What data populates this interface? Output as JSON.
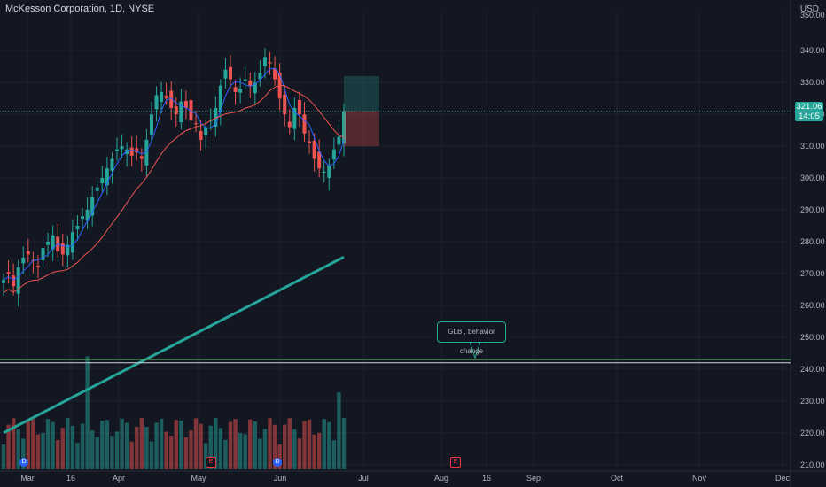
{
  "header": {
    "title": "McKesson Corporation, 1D, NYSE",
    "currency": "USD"
  },
  "last_price": {
    "value": "321.06",
    "countdown": "14:05"
  },
  "annotation": {
    "text": "GLB , behavior change"
  },
  "event_badges": [
    {
      "label": "D",
      "kind": "dividend",
      "month": "Mar"
    },
    {
      "label": "E",
      "kind": "earnings",
      "month": "May"
    },
    {
      "label": "D",
      "kind": "dividend",
      "month": "Jun"
    },
    {
      "label": "E",
      "kind": "earnings",
      "month": "Aug"
    }
  ],
  "colors": {
    "up": "#26a69a",
    "down": "#ef5350",
    "ma_fast": "#2962ff",
    "ma_mid": "#ef5350",
    "ma_slow": "#26a69a",
    "background": "#131722"
  },
  "chart_data": {
    "type": "candlestick",
    "title": "McKesson Corporation, 1D, NYSE",
    "y_axis": {
      "ylim": [
        208,
        352
      ],
      "ticks": [
        210,
        220,
        230,
        240,
        250,
        260,
        270,
        280,
        290,
        300,
        310,
        320,
        330,
        340
      ],
      "top_tick_partial": "350.00"
    },
    "x_axis": {
      "ticks": [
        "Mar",
        "16",
        "Apr",
        "May",
        "Jun",
        "Jul",
        "Aug",
        "16",
        "Sep",
        "Oct",
        "Nov",
        "Dec"
      ]
    },
    "candles_close_approx": [
      268,
      270,
      266,
      272,
      275,
      276,
      274,
      272,
      278,
      280,
      282,
      277,
      276,
      279,
      283,
      285,
      288,
      290,
      294,
      297,
      300,
      303,
      306,
      309,
      310,
      309,
      307,
      308,
      306,
      312,
      320,
      326,
      327,
      325,
      322,
      320,
      324,
      322,
      318,
      317,
      312,
      316,
      318,
      322,
      329,
      334,
      331,
      327,
      328,
      331,
      329,
      330,
      333,
      338,
      336,
      331,
      325,
      320,
      316,
      322,
      320,
      314,
      311,
      306,
      303,
      302,
      304,
      309,
      313,
      321
    ],
    "horizontal_lines": [
      243,
      242
    ],
    "position_box": {
      "entry": 321,
      "target": 332,
      "stop": 310
    }
  }
}
